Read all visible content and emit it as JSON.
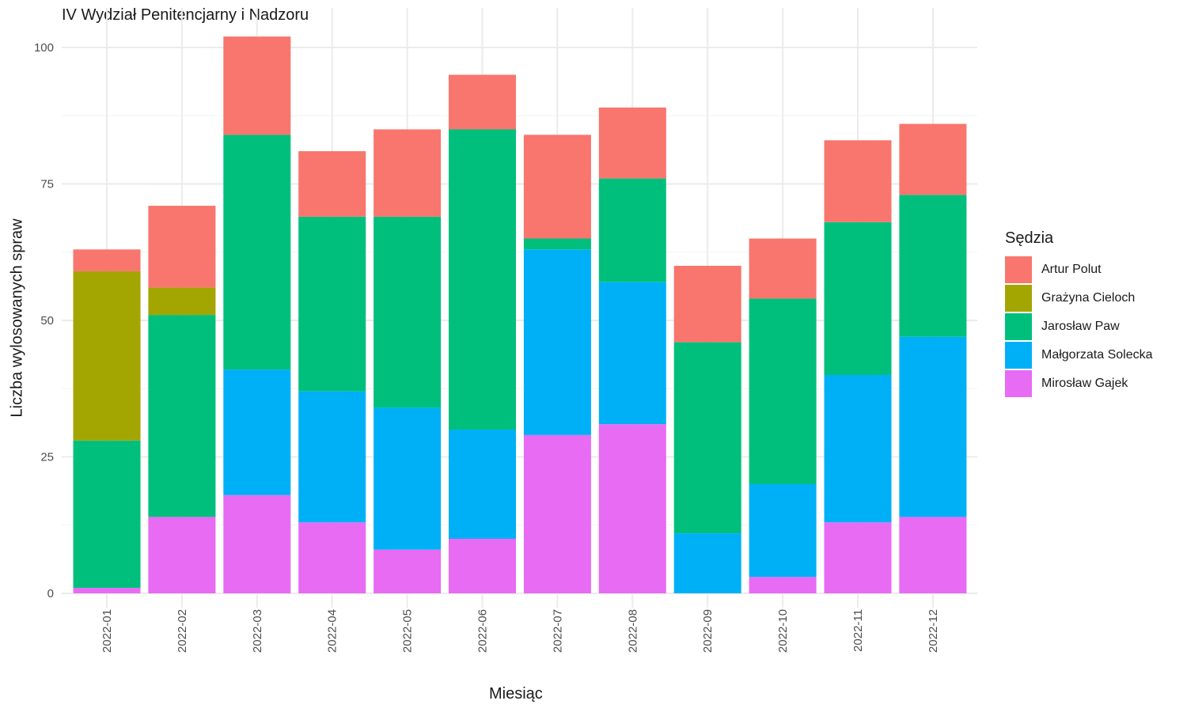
{
  "chart_data": {
    "type": "bar",
    "stacked": true,
    "title": "IV Wydział Penitencjarny i Nadzoru",
    "xlabel": "Miesiąc",
    "ylabel": "Liczba wylosowanych spraw",
    "ylim": [
      0,
      105
    ],
    "yticks": [
      "0",
      "25",
      "50",
      "75",
      "100"
    ],
    "grid": true,
    "legend_title": "Sędzia",
    "legend_position": "right",
    "categories": [
      "2022-01",
      "2022-02",
      "2022-03",
      "2022-04",
      "2022-05",
      "2022-06",
      "2022-07",
      "2022-08",
      "2022-09",
      "2022-10",
      "2022-11",
      "2022-12"
    ],
    "series": [
      {
        "name": "Artur Polut",
        "color": "#F8766D",
        "values": [
          4,
          15,
          18,
          12,
          16,
          10,
          19,
          13,
          14,
          11,
          15,
          13
        ]
      },
      {
        "name": "Grażyna Cieloch",
        "color": "#A3A500",
        "values": [
          31,
          5,
          0,
          0,
          0,
          0,
          0,
          0,
          0,
          0,
          0,
          0
        ]
      },
      {
        "name": "Jarosław Paw",
        "color": "#00BF7D",
        "values": [
          27,
          37,
          43,
          32,
          35,
          55,
          2,
          19,
          35,
          34,
          28,
          26
        ]
      },
      {
        "name": "Małgorzata Solecka",
        "color": "#00B0F6",
        "values": [
          0,
          0,
          23,
          24,
          26,
          20,
          34,
          26,
          11,
          17,
          27,
          33
        ]
      },
      {
        "name": "Mirosław Gajek",
        "color": "#E76BF3",
        "values": [
          1,
          14,
          18,
          13,
          8,
          10,
          29,
          31,
          0,
          3,
          13,
          14
        ]
      }
    ]
  }
}
